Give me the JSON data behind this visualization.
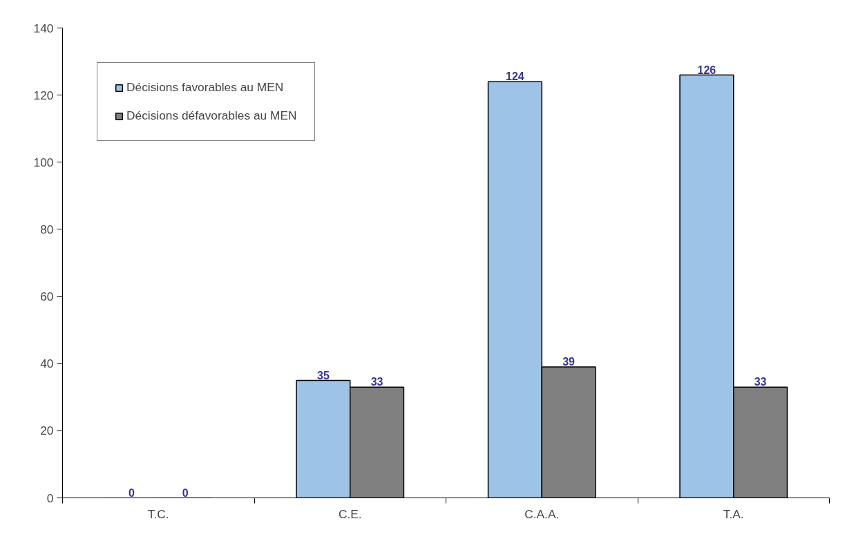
{
  "chart_data": {
    "type": "bar",
    "categories": [
      "T.C.",
      "C.E.",
      "C.A.A.",
      "T.A."
    ],
    "series": [
      {
        "name": "Décisions favorables au MEN",
        "color": "#9dc3e6",
        "values": [
          0,
          35,
          124,
          126
        ]
      },
      {
        "name": "Décisions défavorables au MEN",
        "color": "#808080",
        "values": [
          0,
          33,
          39,
          33
        ]
      }
    ],
    "ylim": [
      0,
      140
    ],
    "yticks": [
      0,
      20,
      40,
      60,
      80,
      100,
      120,
      140
    ],
    "grid": false,
    "legend": "top left",
    "data_labels": true
  }
}
